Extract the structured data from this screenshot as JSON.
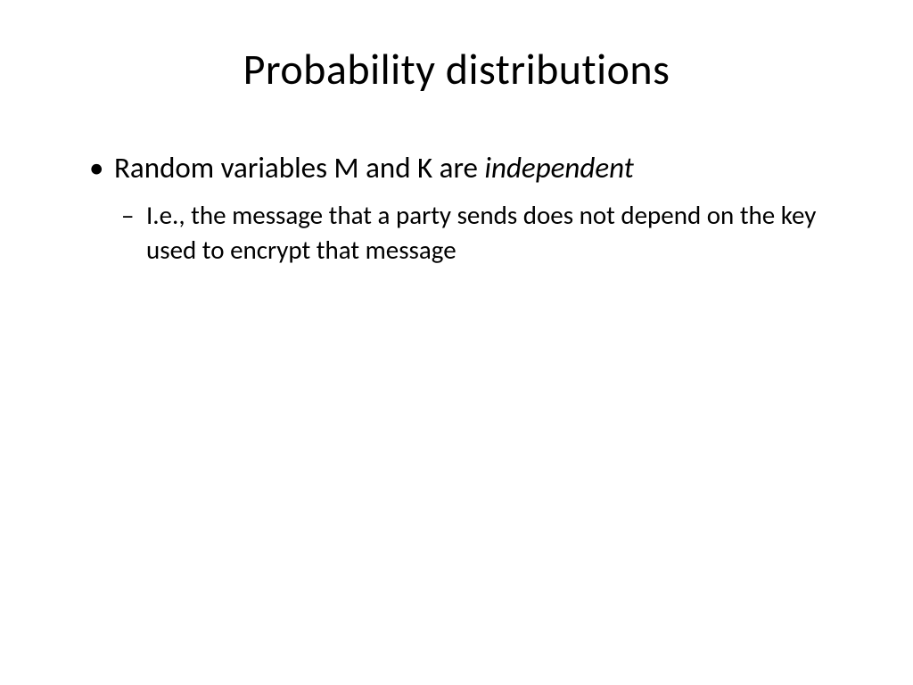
{
  "slide": {
    "title": "Probability distributions",
    "bullets": {
      "item1_prefix": "Random variables M and K are ",
      "item1_italic": "independent",
      "item1_sub": "I.e., the message that a party sends does not depend on the key used to encrypt that message"
    }
  },
  "style": {
    "background_color": "#ffffff",
    "text_color": "#000000",
    "title_fontsize": 48,
    "body_fontsize_l1": 33,
    "body_fontsize_l2": 29,
    "font_family": "Calibri"
  }
}
